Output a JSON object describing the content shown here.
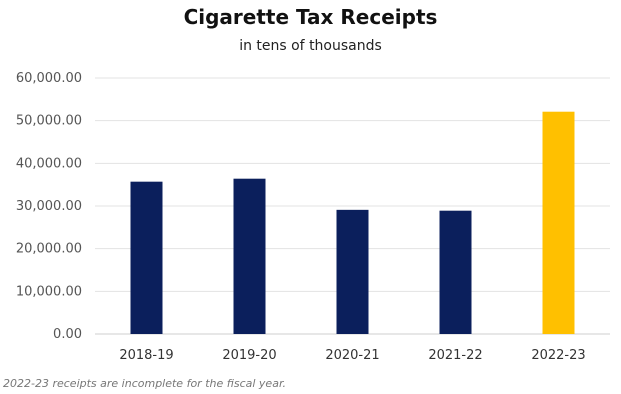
{
  "chart_data": {
    "type": "bar",
    "title": "Cigarette Tax Receipts",
    "subtitle": "in tens of thousands",
    "categories": [
      "2018-19",
      "2019-20",
      "2020-21",
      "2021-22",
      "2022-23"
    ],
    "values": [
      35700,
      36400,
      29100,
      28900,
      52100
    ],
    "bar_colors": [
      "#0b1f5c",
      "#0b1f5c",
      "#0b1f5c",
      "#0b1f5c",
      "#ffc000"
    ],
    "ylim": [
      0,
      60000
    ],
    "yticks": [
      "0.00",
      "10,000.00",
      "20,000.00",
      "30,000.00",
      "40,000.00",
      "50,000.00",
      "60,000.00"
    ],
    "xlabel": "",
    "ylabel": "",
    "grid": true,
    "legend": "none",
    "footnote": "2022-23 receipts are incomplete for the fiscal year."
  }
}
